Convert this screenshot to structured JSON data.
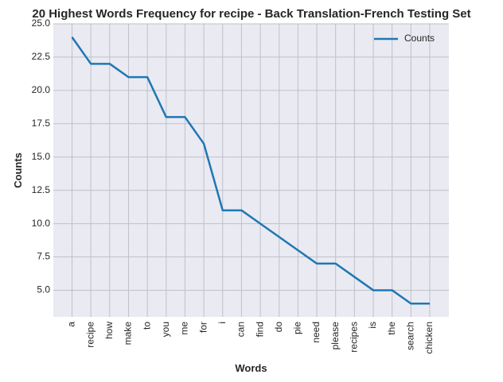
{
  "chart_data": {
    "type": "line",
    "title": "20 Highest Words Frequency for recipe - Back Translation-French Testing Set",
    "xlabel": "Words",
    "ylabel": "Counts",
    "categories": [
      "a",
      "recipe",
      "how",
      "make",
      "to",
      "you",
      "me",
      "for",
      "i",
      "can",
      "find",
      "do",
      "pie",
      "need",
      "please",
      "recipes",
      "is",
      "the",
      "search",
      "chicken"
    ],
    "series": [
      {
        "name": "Counts",
        "values": [
          24,
          22,
          22,
          21,
          21,
          18,
          18,
          16,
          11,
          11,
          10,
          9,
          8,
          7,
          7,
          6,
          5,
          5,
          4,
          4
        ]
      }
    ],
    "ylim": [
      3,
      25
    ],
    "yticks": [
      5.0,
      7.5,
      10.0,
      12.5,
      15.0,
      17.5,
      20.0,
      22.5,
      25.0
    ],
    "ytick_labels": [
      "5.0",
      "7.5",
      "10.0",
      "12.5",
      "15.0",
      "17.5",
      "20.0",
      "22.5",
      "25.0"
    ],
    "grid": true,
    "legend_position": "top-right",
    "colors": {
      "line": "#1f77b4",
      "plot_background": "#eaeaf2",
      "grid": "#c0c0c8"
    }
  }
}
